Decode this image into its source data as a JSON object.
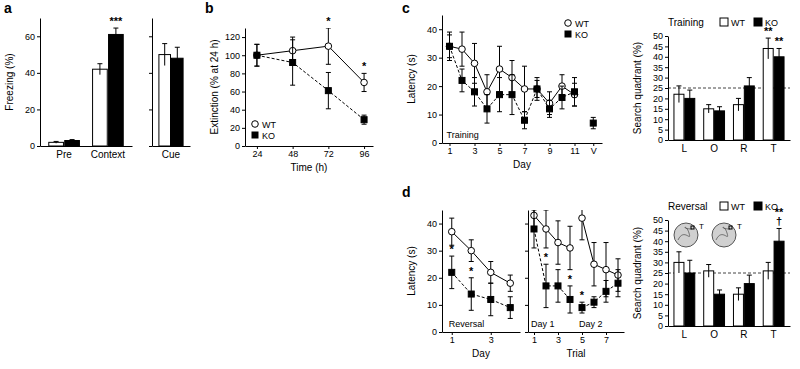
{
  "chart_data": [
    {
      "type": "bar",
      "panel_label": "a",
      "ylabel": "Freezing (%)",
      "categories": [
        "Pre",
        "Context"
      ],
      "series": [
        {
          "name": "WT",
          "color": "#ffffff",
          "values": [
            2,
            42
          ],
          "errors": [
            0.5,
            3
          ]
        },
        {
          "name": "KO",
          "color": "#000000",
          "values": [
            3,
            61
          ],
          "errors": [
            0.5,
            3.5
          ]
        }
      ],
      "ylim": [
        0,
        70
      ],
      "yticks": [
        0,
        20,
        40,
        60
      ],
      "annotations": [
        {
          "text": "***",
          "category": "Context",
          "series": "KO"
        }
      ]
    },
    {
      "type": "bar",
      "categories": [
        "Cue"
      ],
      "series": [
        {
          "name": "WT",
          "color": "#ffffff",
          "values": [
            50
          ],
          "errors": [
            6
          ]
        },
        {
          "name": "KO",
          "color": "#000000",
          "values": [
            48
          ],
          "errors": [
            6
          ]
        }
      ],
      "ylim": [
        0,
        70
      ],
      "yticks": [
        0,
        20,
        40,
        60
      ],
      "tick_labels": "x"
    },
    {
      "type": "line",
      "panel_label": "b",
      "xlabel": "Time (h)",
      "ylabel": "Extinction (% at 24 h)",
      "x": [
        24,
        48,
        72,
        96
      ],
      "xlim": [
        16,
        102
      ],
      "xticks": [
        24,
        48,
        72,
        96
      ],
      "ylim": [
        0,
        130
      ],
      "yticks": [
        0,
        20,
        40,
        60,
        80,
        100,
        120
      ],
      "legend": "lower left",
      "series": [
        {
          "name": "WT",
          "color": "#ffffff",
          "marker": "circle",
          "line_style": "solid",
          "values": [
            100,
            105,
            110,
            70
          ],
          "errors": [
            12,
            15,
            20,
            10
          ]
        },
        {
          "name": "KO",
          "color": "#000000",
          "marker": "square",
          "line_style": "dashed",
          "values": [
            100,
            92,
            61,
            29
          ],
          "errors": [
            12,
            25,
            20,
            5
          ]
        }
      ],
      "annotations": [
        {
          "text": "*",
          "x": 72,
          "series": "WT"
        },
        {
          "text": "*",
          "x": 96,
          "series": "WT"
        }
      ]
    },
    {
      "type": "line",
      "panel_label": "c",
      "xlabel": "Day",
      "ylabel": "Latency (s)",
      "x": [
        1,
        2,
        3,
        4,
        5,
        6,
        7,
        8,
        9,
        10,
        11
      ],
      "xlim": [
        0.4,
        13.2
      ],
      "xticks": [
        1,
        3,
        5,
        7,
        9,
        11,
        {
          "value": 12.5,
          "label": "V"
        }
      ],
      "ylim": [
        0,
        45
      ],
      "yticks": [
        0,
        10,
        20,
        30,
        40
      ],
      "legend": "upper right",
      "labels": [
        {
          "text": "Training",
          "x": 1
        }
      ],
      "series": [
        {
          "name": "WT",
          "color": "#ffffff",
          "marker": "circle",
          "line_style": "solid",
          "values": [
            34,
            33,
            28,
            18,
            26,
            23,
            19,
            19,
            14,
            20,
            17
          ],
          "errors": [
            5,
            6,
            7,
            6,
            8,
            6,
            8,
            4,
            4,
            4,
            4
          ]
        },
        {
          "name": "KO",
          "color": "#000000",
          "marker": "square",
          "line_style": "dashed",
          "values": [
            34,
            22,
            18,
            12,
            17,
            17,
            8,
            19,
            12,
            16,
            18
          ],
          "errors": [
            4,
            4,
            5,
            5,
            6,
            7,
            3,
            3,
            3,
            4,
            5
          ]
        },
        {
          "color": "#000000",
          "marker": "square",
          "x": [
            12.5
          ],
          "values": [
            7
          ],
          "errors": [
            2
          ]
        }
      ]
    },
    {
      "type": "bar",
      "title": "Training",
      "ylabel": "Search quadrant (%)",
      "categories": [
        "L",
        "O",
        "R",
        "T"
      ],
      "series": [
        {
          "name": "WT",
          "color": "#ffffff",
          "values": [
            22,
            15,
            17,
            44
          ],
          "errors": [
            4,
            2,
            3,
            5
          ]
        },
        {
          "name": "KO",
          "color": "#000000",
          "values": [
            20,
            14,
            26,
            40
          ],
          "errors": [
            4,
            2,
            4,
            4
          ]
        }
      ],
      "ylim": [
        0,
        50
      ],
      "yticks": [
        0,
        5,
        10,
        15,
        20,
        25,
        30,
        35,
        40,
        45,
        50
      ],
      "chance": 25,
      "legend": "top",
      "annotations": [
        {
          "text": "**",
          "category": "T",
          "series": "WT"
        },
        {
          "text": "**",
          "category": "T",
          "series": "KO"
        }
      ]
    },
    {
      "type": "line",
      "panel_label": "d",
      "xlabel": "Day",
      "ylabel": "Latency (s)",
      "x": [
        1,
        2,
        3,
        4
      ],
      "xlim": [
        0.5,
        4.5
      ],
      "xticks": [
        1,
        3
      ],
      "ylim": [
        0,
        45
      ],
      "yticks": [
        0,
        10,
        20,
        30,
        40
      ],
      "labels": [
        {
          "text": "Reversal",
          "x": 1
        }
      ],
      "series": [
        {
          "name": "WT",
          "color": "#ffffff",
          "marker": "circle",
          "line_style": "solid",
          "values": [
            37,
            30,
            22,
            18
          ],
          "errors": [
            5,
            4,
            4,
            3
          ]
        },
        {
          "name": "KO",
          "color": "#000000",
          "marker": "square",
          "line_style": "dashed",
          "values": [
            22,
            14,
            12,
            9
          ],
          "errors": [
            6,
            6,
            6,
            4
          ]
        }
      ],
      "annotations": [
        {
          "text": "*",
          "x": 1,
          "series": "KO"
        },
        {
          "text": "*",
          "x": 2,
          "series": "KO"
        }
      ]
    },
    {
      "type": "line",
      "xlabel": "Trial",
      "xlim": [
        0.5,
        8.5
      ],
      "xticks": [
        1,
        3,
        5,
        7
      ],
      "ylim": [
        0,
        45
      ],
      "yticks": [
        0,
        10,
        20,
        30,
        40
      ],
      "tick_labels": "x",
      "labels": [
        {
          "text": "Day 1",
          "x": 1
        },
        {
          "text": "Day 2",
          "x": 5
        }
      ],
      "series": [
        {
          "name": "WT",
          "color": "#ffffff",
          "marker": "circle",
          "line_style": "solid",
          "x": [
            1,
            2,
            3,
            4
          ],
          "values": [
            43,
            38,
            33,
            31
          ],
          "errors": [
            5,
            7,
            8,
            8
          ]
        },
        {
          "name": "KO",
          "color": "#000000",
          "marker": "square",
          "line_style": "dashed",
          "x": [
            1,
            2,
            3,
            4
          ],
          "values": [
            38,
            17,
            17,
            12
          ],
          "errors": [
            7,
            8,
            6,
            5
          ]
        },
        {
          "name": "WT",
          "color": "#ffffff",
          "marker": "circle",
          "line_style": "solid",
          "x": [
            5,
            6,
            7,
            8
          ],
          "values": [
            42,
            25,
            23,
            21
          ],
          "errors": [
            8,
            8,
            10,
            6
          ]
        },
        {
          "name": "KO",
          "color": "#000000",
          "marker": "square",
          "line_style": "dashed",
          "x": [
            5,
            6,
            7,
            8
          ],
          "values": [
            9,
            11,
            15,
            18
          ],
          "errors": [
            2,
            2,
            4,
            5
          ]
        }
      ],
      "annotations": [
        {
          "text": "*",
          "x": 2,
          "series": "KO"
        },
        {
          "text": "*",
          "x": 4,
          "series": "KO"
        },
        {
          "text": "*",
          "x": 5,
          "series": "KO"
        }
      ]
    },
    {
      "type": "bar",
      "title": "Reversal",
      "ylabel": "Search quadrant (%)",
      "categories": [
        "L",
        "O",
        "R",
        "T"
      ],
      "series": [
        {
          "name": "WT",
          "color": "#ffffff",
          "values": [
            30,
            26,
            15,
            26
          ],
          "errors": [
            5,
            3,
            3,
            4
          ]
        },
        {
          "name": "KO",
          "color": "#000000",
          "values": [
            25,
            15,
            20,
            40
          ],
          "errors": [
            6,
            2,
            4,
            6
          ]
        }
      ],
      "ylim": [
        0,
        50
      ],
      "yticks": [
        0,
        5,
        10,
        15,
        20,
        25,
        30,
        35,
        40,
        45,
        50
      ],
      "chance": 25,
      "legend": "top",
      "insets": [
        "T",
        "T"
      ],
      "annotations": [
        {
          "text": "†",
          "category": "T",
          "series": "KO"
        },
        {
          "text": "**",
          "category": "T",
          "series": "KO"
        }
      ]
    }
  ]
}
